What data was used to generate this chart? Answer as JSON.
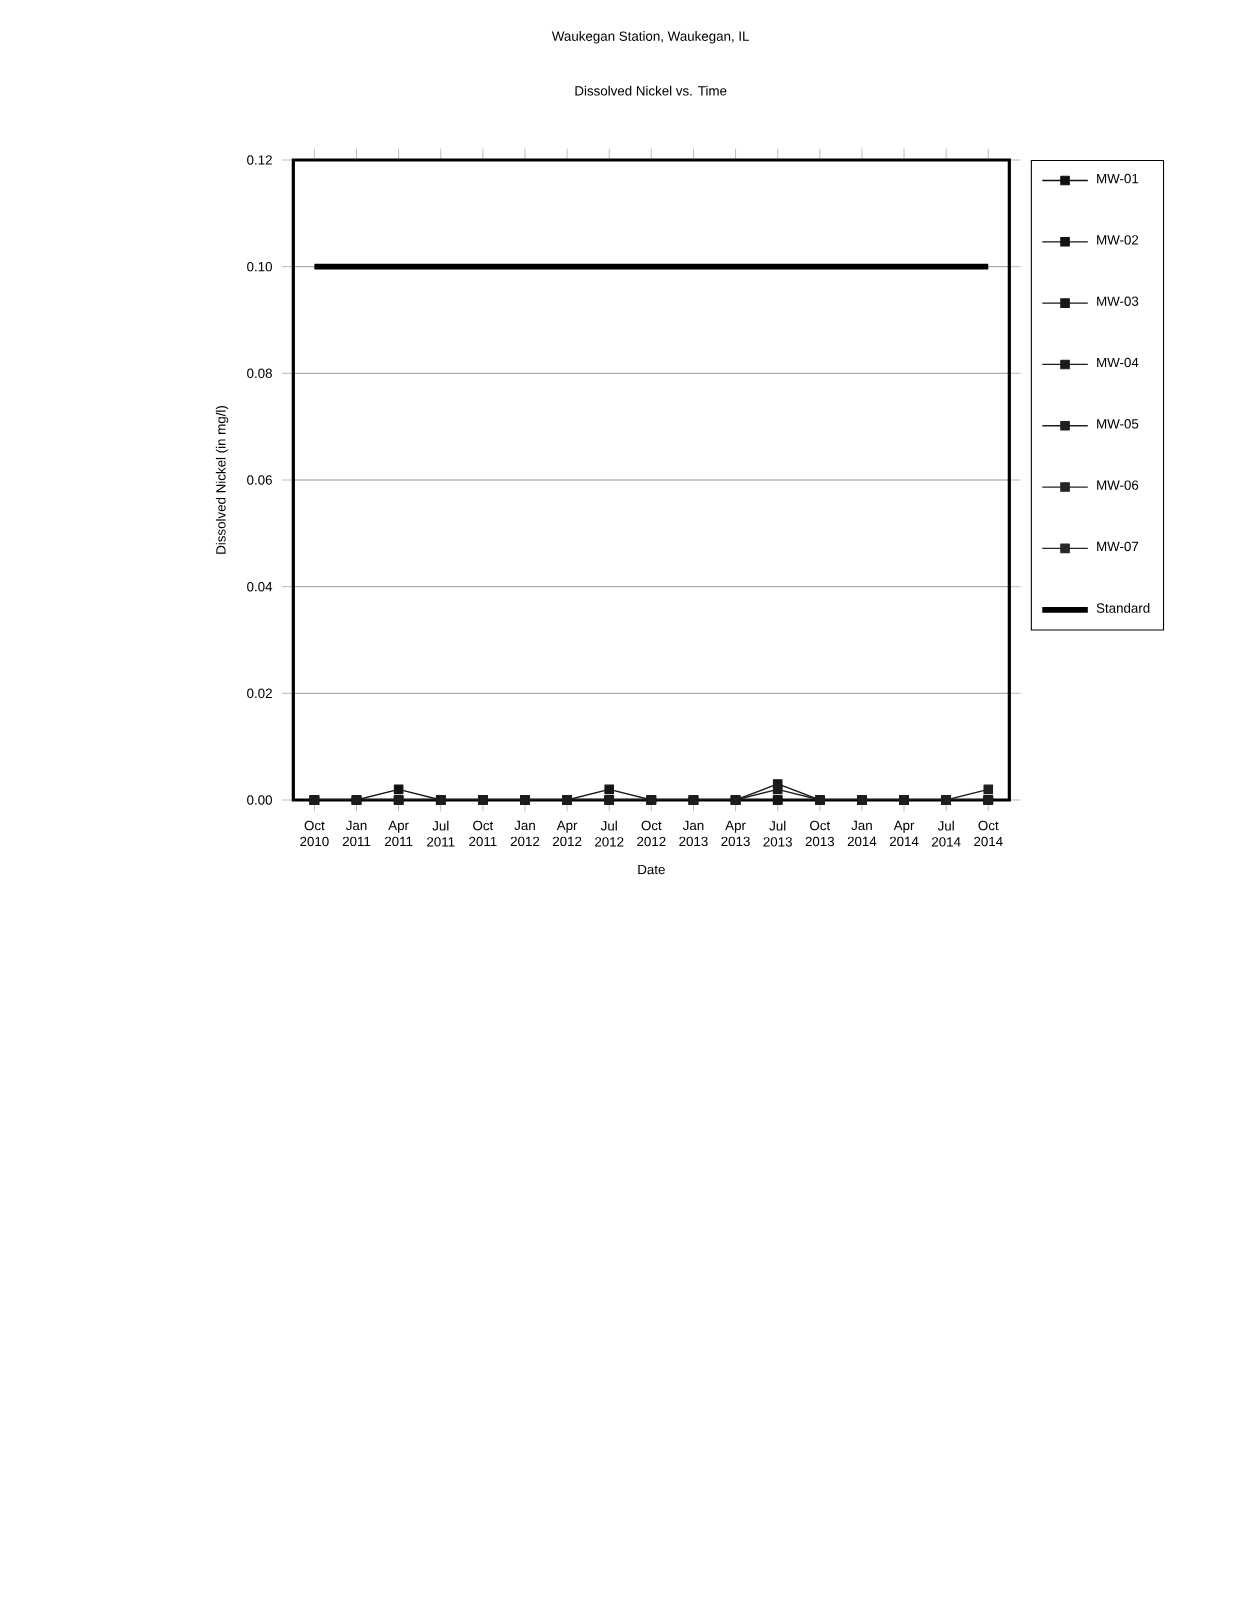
{
  "chart_data": {
    "type": "line",
    "title": "Waukegan Station, Waukegan, IL",
    "subtitle": "Dissolved Nickel vs. Time",
    "xlabel": "Date",
    "ylabel": "Dissolved Nickel (in mg/l)",
    "categories": [
      "Oct 2010",
      "Jan 2011",
      "Apr 2011",
      "Jul 2011",
      "Oct 2011",
      "Jan 2012",
      "Apr 2012",
      "Jul 2012",
      "Oct 2012",
      "Jan 2013",
      "Apr 2013",
      "Jul 2013",
      "Oct 2013",
      "Jan 2014",
      "Apr 2014",
      "Jul 2014",
      "Oct 2014"
    ],
    "ylim": [
      0,
      0.12
    ],
    "yticks": [
      {
        "value": 0,
        "label": "0.00"
      },
      {
        "value": 0.02,
        "label": "0.02"
      },
      {
        "value": 0.04,
        "label": "0.04"
      },
      {
        "value": 0.06,
        "label": "0.06"
      },
      {
        "value": 0.08,
        "label": "0.08"
      },
      {
        "value": 0.1,
        "label": "0.10"
      },
      {
        "value": 0.12,
        "label": "0.12"
      }
    ],
    "grid": "y",
    "legend": "right",
    "marker": "square",
    "series": [
      {
        "name": "MW-01",
        "color": "#101010",
        "values": [
          0,
          0,
          0.002,
          0,
          0,
          0,
          0,
          0,
          0,
          0,
          0,
          0,
          0,
          0,
          0,
          0,
          0
        ]
      },
      {
        "name": "MW-02",
        "color": "#141414",
        "values": [
          0,
          0,
          0,
          0,
          0,
          0,
          0,
          0.002,
          0,
          0,
          0,
          0,
          0,
          0,
          0,
          0,
          0
        ]
      },
      {
        "name": "MW-03",
        "color": "#181818",
        "values": [
          0,
          0,
          0,
          0,
          0,
          0,
          0,
          0,
          0,
          0,
          0,
          0.003,
          0,
          0,
          0,
          0,
          0
        ]
      },
      {
        "name": "MW-04",
        "color": "#1c1c1c",
        "values": [
          0,
          0,
          0,
          0,
          0,
          0,
          0,
          0,
          0,
          0,
          0,
          0.002,
          0,
          0,
          0,
          0,
          0
        ]
      },
      {
        "name": "MW-05",
        "color": "#202020",
        "values": [
          null,
          null,
          null,
          null,
          null,
          null,
          null,
          null,
          null,
          null,
          null,
          null,
          null,
          null,
          null,
          0,
          0.002
        ]
      },
      {
        "name": "MW-06",
        "color": "#242424",
        "values": [
          null,
          null,
          null,
          null,
          null,
          null,
          null,
          null,
          null,
          null,
          null,
          null,
          null,
          null,
          null,
          null,
          null
        ]
      },
      {
        "name": "MW-07",
        "color": "#282828",
        "values": [
          null,
          null,
          null,
          null,
          null,
          null,
          null,
          null,
          null,
          null,
          null,
          null,
          null,
          null,
          null,
          null,
          null
        ]
      },
      {
        "name": "Standard",
        "color": "#000000",
        "marker": "none",
        "values": [
          0.1,
          0.1,
          0.1,
          0.1,
          0.1,
          0.1,
          0.1,
          0.1,
          0.1,
          0.1,
          0.1,
          0.1,
          0.1,
          0.1,
          0.1,
          0.1,
          0.1
        ]
      }
    ]
  }
}
